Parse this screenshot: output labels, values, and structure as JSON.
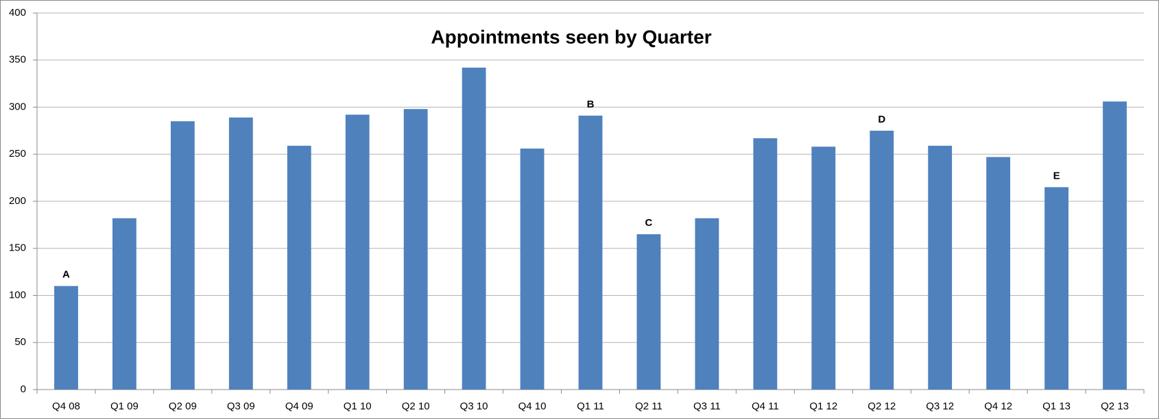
{
  "chart_data": {
    "type": "bar",
    "title": "Appointments seen by Quarter",
    "categories": [
      "Q4 08",
      "Q1 09",
      "Q2 09",
      "Q3 09",
      "Q4 09",
      "Q1 10",
      "Q2 10",
      "Q3 10",
      "Q4 10",
      "Q1 11",
      "Q2 11",
      "Q3 11",
      "Q4 11",
      "Q1 12",
      "Q2 12",
      "Q3 12",
      "Q4 12",
      "Q1 13",
      "Q2 13"
    ],
    "values": [
      110,
      182,
      285,
      289,
      259,
      292,
      298,
      342,
      256,
      291,
      165,
      182,
      267,
      258,
      275,
      259,
      247,
      215,
      306
    ],
    "color": "#4f81bd",
    "ylim": [
      0,
      400
    ],
    "yticks": [
      0,
      50,
      100,
      150,
      200,
      250,
      300,
      350,
      400
    ],
    "grid": true,
    "annotations": [
      {
        "label": "A",
        "category": "Q4 08"
      },
      {
        "label": "B",
        "category": "Q1 11"
      },
      {
        "label": "C",
        "category": "Q2 11"
      },
      {
        "label": "D",
        "category": "Q2 12"
      },
      {
        "label": "E",
        "category": "Q1 13"
      }
    ]
  }
}
